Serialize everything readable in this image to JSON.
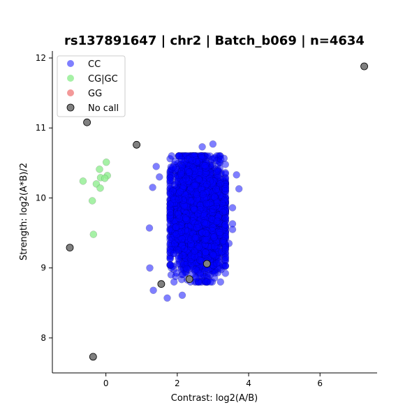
{
  "chart_data": {
    "type": "scatter",
    "title": "rs137891647 | chr2 | Batch_b069 | n=4634",
    "xlabel": "Contrast: log2(A/B)",
    "ylabel": "Strength: log2(A*B)/2",
    "xlim": [
      -1.5,
      7.6
    ],
    "ylim": [
      7.5,
      12.1
    ],
    "xticks": [
      0,
      2,
      4,
      6
    ],
    "yticks": [
      8,
      9,
      10,
      11,
      12
    ],
    "grid": false,
    "legend_position": "top-left",
    "series": [
      {
        "name": "CC",
        "color": "#0000ff",
        "opacity": 0.5,
        "cluster": {
          "n": 4590,
          "x_mean": 2.6,
          "x_sd": 0.36,
          "y_mean": 9.75,
          "y_sd": 0.36
        },
        "points": [
          [
            1.41,
            10.45
          ],
          [
            1.31,
            10.15
          ],
          [
            1.22,
            9.57
          ],
          [
            1.23,
            9.0
          ],
          [
            1.33,
            8.68
          ],
          [
            1.72,
            8.57
          ],
          [
            2.14,
            8.61
          ],
          [
            2.93,
            8.8
          ],
          [
            3.55,
            9.55
          ],
          [
            3.55,
            9.63
          ],
          [
            3.55,
            9.86
          ],
          [
            3.73,
            10.13
          ],
          [
            3.66,
            10.33
          ],
          [
            3.0,
            10.77
          ],
          [
            2.7,
            10.73
          ],
          [
            2.12,
            10.55
          ],
          [
            1.88,
            10.44
          ],
          [
            3.22,
            10.55
          ],
          [
            1.5,
            10.3
          ],
          [
            3.45,
            9.35
          ]
        ]
      },
      {
        "name": "CG|GC",
        "color": "#90ee90",
        "opacity": 0.8,
        "points": [
          [
            0.01,
            10.51
          ],
          [
            -0.18,
            10.41
          ],
          [
            0.04,
            10.32
          ],
          [
            -0.15,
            10.29
          ],
          [
            -0.03,
            10.28
          ],
          [
            -0.64,
            10.24
          ],
          [
            -0.27,
            10.2
          ],
          [
            -0.16,
            10.14
          ],
          [
            -0.38,
            9.96
          ],
          [
            -0.35,
            9.48
          ]
        ]
      },
      {
        "name": "GG",
        "color": "#f08080",
        "opacity": 0.8,
        "points": []
      },
      {
        "name": "No call",
        "color": "#808080",
        "opacity": 1.0,
        "points": [
          [
            7.24,
            11.88
          ],
          [
            -0.53,
            11.08
          ],
          [
            0.86,
            10.76
          ],
          [
            -1.01,
            9.29
          ],
          [
            2.83,
            9.06
          ],
          [
            2.34,
            8.84
          ],
          [
            1.55,
            8.77
          ],
          [
            -0.36,
            7.73
          ]
        ]
      }
    ]
  }
}
